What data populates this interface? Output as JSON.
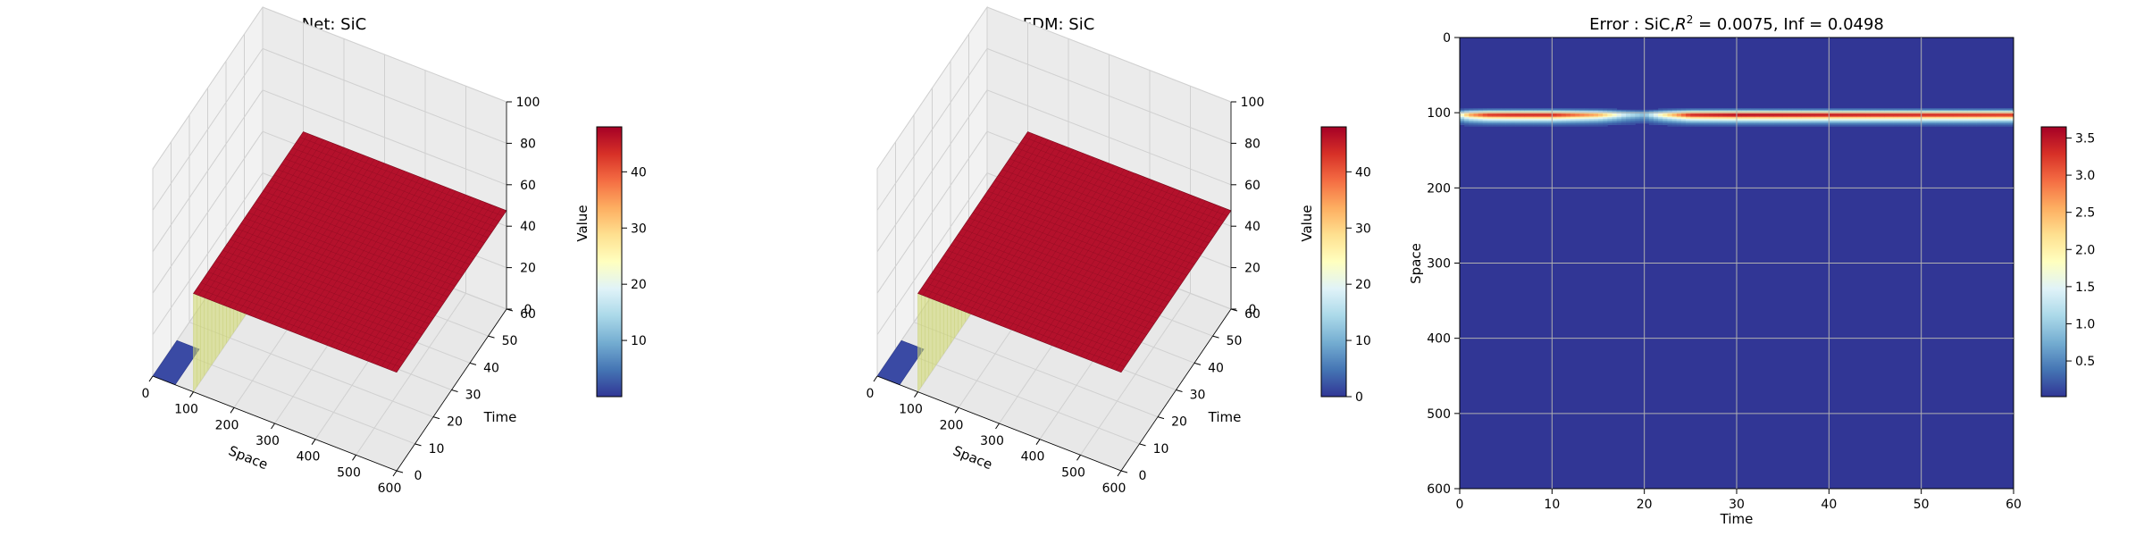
{
  "colors": {
    "background": "#ffffff",
    "pane": "#f2f2f2",
    "grid": "#d0d0d0",
    "surface_top": "#b4112c",
    "surface_edge": "#d0d86a",
    "surface_low": "#3a4aa4",
    "error_base": "#313695"
  },
  "colormap": "RdYlBu_r",
  "chart_data": [
    {
      "type": "surface3d",
      "title": "Net: SiC",
      "xlabel": "Space",
      "ylabel": "Time",
      "zlabel": "Value",
      "xlim": [
        0,
        600
      ],
      "ylim": [
        0,
        60
      ],
      "zlim": [
        0,
        100
      ],
      "x_ticks": [
        0,
        100,
        200,
        300,
        400,
        500,
        600
      ],
      "y_ticks": [
        0,
        10,
        20,
        30,
        40,
        50,
        60
      ],
      "z_ticks": [
        0,
        20,
        40,
        60,
        80,
        100
      ],
      "surface": {
        "low_value": 0,
        "high_value": 47.5,
        "step_space": 100
      },
      "colorbar": {
        "min": 0,
        "max": 48,
        "ticks": [
          10,
          20,
          30,
          40
        ]
      }
    },
    {
      "type": "surface3d",
      "title": "FDM: SiC",
      "xlabel": "Space",
      "ylabel": "Time",
      "zlabel": "Value",
      "xlim": [
        0,
        600
      ],
      "ylim": [
        0,
        60
      ],
      "zlim": [
        0,
        100
      ],
      "x_ticks": [
        0,
        100,
        200,
        300,
        400,
        500,
        600
      ],
      "y_ticks": [
        0,
        10,
        20,
        30,
        40,
        50,
        60
      ],
      "z_ticks": [
        0,
        20,
        40,
        60,
        80,
        100
      ],
      "surface": {
        "low_value": 0,
        "high_value": 47.5,
        "step_space": 100
      },
      "colorbar": {
        "min": 0,
        "max": 48,
        "ticks": [
          0,
          10,
          20,
          30,
          40
        ]
      }
    },
    {
      "type": "heatmap",
      "title": "Error : SiC,$R^2$ = 0.0075, Inf = 0.0498",
      "title_parts": {
        "prefix": "Error : SiC,",
        "r_symbol": "R",
        "r_exp": "2",
        "suffix": " = 0.0075, Inf = 0.0498"
      },
      "xlabel": "Time",
      "ylabel": "Space",
      "xlim": [
        0,
        60
      ],
      "ylim": [
        600,
        0
      ],
      "x_ticks": [
        0,
        10,
        20,
        30,
        40,
        50,
        60
      ],
      "y_ticks": [
        0,
        100,
        200,
        300,
        400,
        500,
        600
      ],
      "grid": true,
      "background_value": 0.02,
      "error_band": {
        "space_center": 102,
        "profile_time": [
          0,
          1,
          3,
          6,
          10,
          15,
          18,
          20,
          22,
          25,
          30,
          40,
          50,
          60
        ],
        "profile_peak": [
          1.6,
          2.6,
          3.3,
          3.4,
          3.4,
          2.6,
          1.3,
          0.9,
          2.0,
          3.4,
          3.6,
          3.5,
          3.4,
          3.3
        ]
      },
      "colorbar": {
        "min": 0.02,
        "max": 3.65,
        "ticks": [
          0.5,
          1.0,
          1.5,
          2.0,
          2.5,
          3.0,
          3.5
        ]
      }
    }
  ]
}
